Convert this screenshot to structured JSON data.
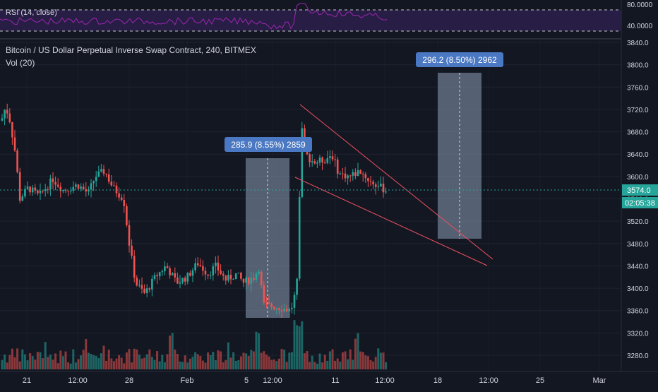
{
  "rsi": {
    "label": "RSI (14, close)",
    "levels": [
      "80.0000",
      "40.0000"
    ]
  },
  "main": {
    "title": "Bitcoin / US Dollar Perpetual Inverse Swap Contract, 240, BITMEX",
    "volume_label": "Vol (20)",
    "price_badge": "3574.0",
    "countdown_badge": "02:05:38"
  },
  "annotations": {
    "box1_label": "285.9 (8.55%) 2859",
    "box2_label": "296.2 (8.50%) 2962"
  },
  "colors": {
    "background": "#131722",
    "up": "#26a69a",
    "down": "#ef5350",
    "rsi_line": "#9c27b0",
    "rsi_band": "#2d1e4a",
    "measure_box": "#8c9cb4",
    "label_bg": "#4a78c2",
    "trendline": "#f05060",
    "price_line": "#26a69a"
  },
  "chart_data": {
    "type": "candlestick",
    "y_axis_ticks": [
      3840,
      3800,
      3760,
      3720,
      3680,
      3640,
      3600,
      3560,
      3520,
      3480,
      3440,
      3400,
      3360,
      3320,
      3280
    ],
    "x_axis_ticks": [
      "21",
      "12:00",
      "28",
      "Feb",
      "5",
      "12:00",
      "11",
      "12:00",
      "18",
      "12:00",
      "25",
      "Mar"
    ],
    "ylim": [
      3262,
      3848
    ],
    "last_price": 3574.0,
    "price_series_approx": [
      {
        "x": "Jan 19",
        "close": 3700
      },
      {
        "x": "Jan 20",
        "close": 3620
      },
      {
        "x": "Jan 21",
        "close": 3570
      },
      {
        "x": "Jan 22",
        "close": 3590
      },
      {
        "x": "Jan 24",
        "close": 3575
      },
      {
        "x": "Jan 25",
        "close": 3570
      },
      {
        "x": "Jan 27",
        "close": 3600
      },
      {
        "x": "Jan 28",
        "close": 3480
      },
      {
        "x": "Jan 29",
        "close": 3400
      },
      {
        "x": "Jan 31",
        "close": 3445
      },
      {
        "x": "Feb 2",
        "close": 3420
      },
      {
        "x": "Feb 4",
        "close": 3440
      },
      {
        "x": "Feb 5",
        "close": 3410
      },
      {
        "x": "Feb 6",
        "close": 3380
      },
      {
        "x": "Feb 7",
        "close": 3365
      },
      {
        "x": "Feb 8",
        "close": 3640
      },
      {
        "x": "Feb 9",
        "close": 3625
      },
      {
        "x": "Feb 10",
        "close": 3620
      },
      {
        "x": "Feb 11",
        "close": 3600
      },
      {
        "x": "Feb 12",
        "close": 3574
      }
    ],
    "measure_boxes": [
      {
        "label": "285.9 (8.55%) 2859",
        "from": 3345,
        "to": 3630
      },
      {
        "label": "296.2 (8.50%) 2962",
        "from": 3487,
        "to": 3783
      }
    ],
    "rsi_levels": [
      80,
      40
    ],
    "volume_label": "Vol (20)"
  }
}
